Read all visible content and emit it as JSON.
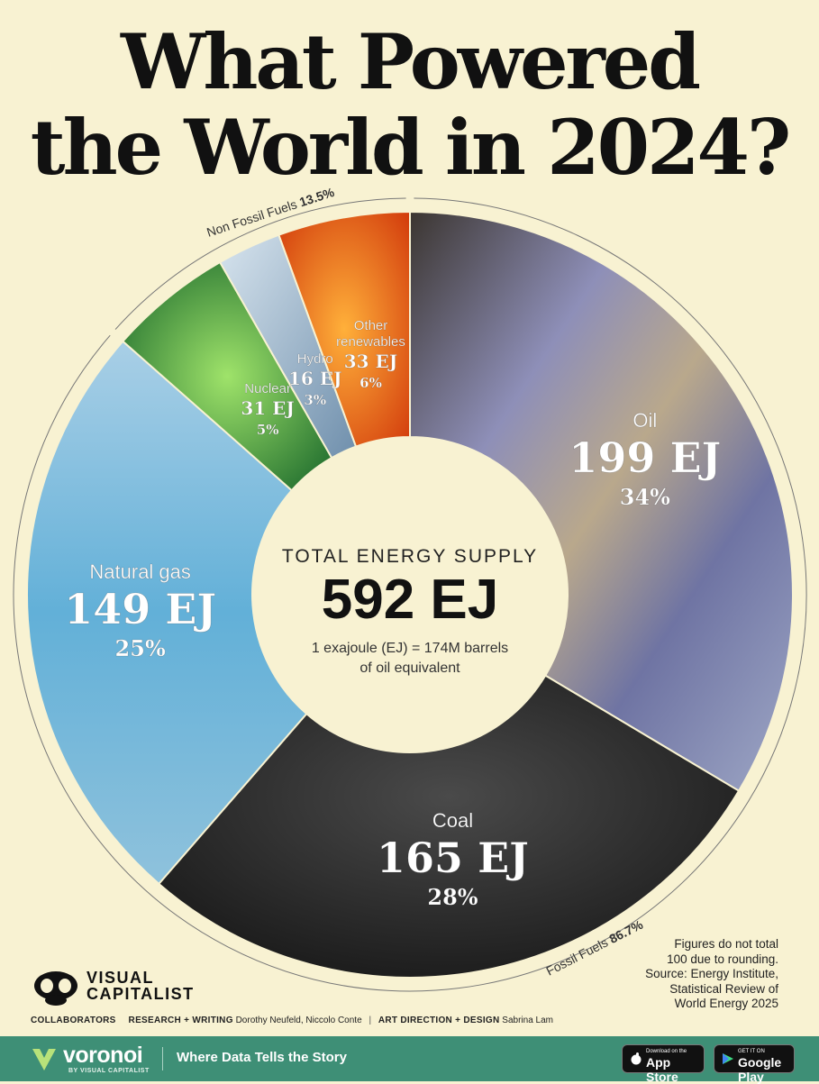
{
  "header": {
    "title_line1": "What Powered",
    "title_line2": "the World in 2024?"
  },
  "chart_data": {
    "type": "pie",
    "title": "What Powered the World in 2024?",
    "center": {
      "label": "TOTAL ENERGY SUPPLY",
      "value": "592 EJ",
      "note_line1": "1 exajoule (EJ) = 174M barrels",
      "note_line2": "of oil equivalent"
    },
    "slices": [
      {
        "name": "Oil",
        "value": 199,
        "value_label": "199 EJ",
        "percent": 34,
        "percent_label": "34%",
        "color": "#7d82a8"
      },
      {
        "name": "Coal",
        "value": 165,
        "value_label": "165 EJ",
        "percent": 28,
        "percent_label": "28%",
        "color": "#2b2b2b"
      },
      {
        "name": "Natural gas",
        "value": 149,
        "value_label": "149 EJ",
        "percent": 25,
        "percent_label": "25%",
        "color": "#6cb3d8"
      },
      {
        "name": "Nuclear",
        "value": 31,
        "value_label": "31 EJ",
        "percent": 5,
        "percent_label": "5%",
        "color": "#2f8a3a"
      },
      {
        "name": "Hydro",
        "value": 16,
        "value_label": "16 EJ",
        "percent": 3,
        "percent_label": "3%",
        "color": "#8aa8c2"
      },
      {
        "name": "Other renewables",
        "name_line1": "Other",
        "name_line2": "renewables",
        "value": 33,
        "value_label": "33 EJ",
        "percent": 6,
        "percent_label": "6%",
        "color": "#e8531a"
      }
    ],
    "groups": [
      {
        "label": "Fossil Fuels",
        "value_label": "86.7%",
        "members": [
          "Oil",
          "Coal",
          "Natural gas"
        ]
      },
      {
        "label": "Non Fossil Fuels",
        "value_label": "13.5%",
        "members": [
          "Nuclear",
          "Hydro",
          "Other renewables"
        ]
      }
    ]
  },
  "notes": {
    "line1": "Figures do not total",
    "line2": "100 due to rounding.",
    "line3": "Source: Energy Institute,",
    "line4": "Statistical Review of",
    "line5": "World Energy 2025"
  },
  "branding": {
    "vc_line1": "VISUAL",
    "vc_line2": "CAPITALIST",
    "collaborators_label": "COLLABORATORS",
    "research_label": "RESEARCH + WRITING",
    "research_names": "Dorothy Neufeld, Niccolo Conte",
    "separator": "|",
    "art_label": "ART DIRECTION + DESIGN",
    "art_names": "Sabrina Lam"
  },
  "footer": {
    "brand": "voronoi",
    "brand_sub": "BY VISUAL CAPITALIST",
    "tagline": "Where Data Tells the Story",
    "appstore_small": "Download on the",
    "appstore_big": "App Store",
    "googleplay_small": "GET IT ON",
    "googleplay_big": "Google Play",
    "color": "#3e8f76"
  }
}
